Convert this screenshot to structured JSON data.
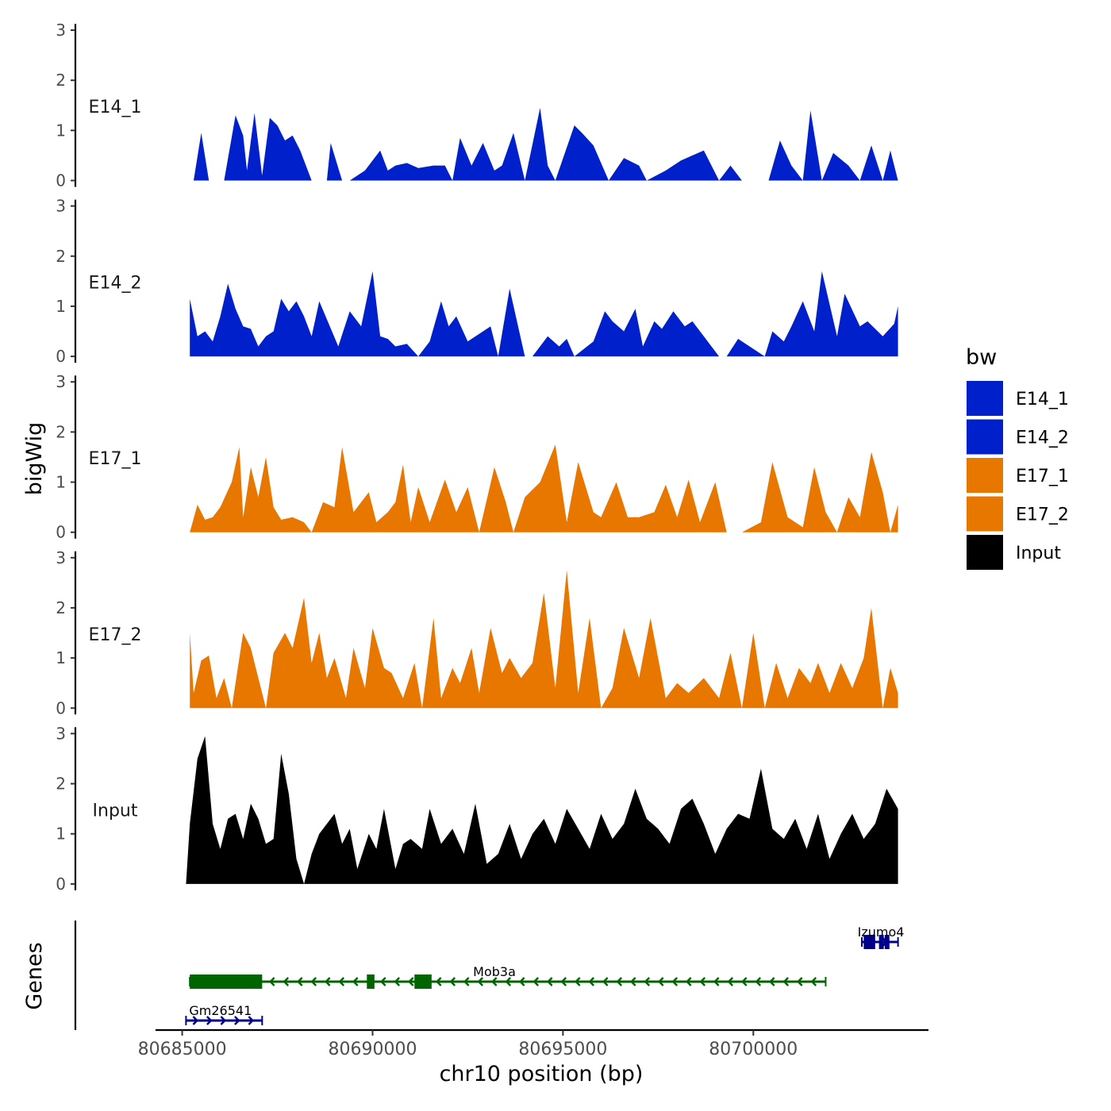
{
  "chart_data": {
    "type": "area",
    "xlabel": "chr10 position (bp)",
    "ylabel": "bigWig",
    "genes_label": "Genes",
    "xlim": [
      80684300,
      80704600
    ],
    "x_ticks": [
      80685000,
      80690000,
      80695000,
      80700000
    ],
    "x_tick_labels": [
      "80685000",
      "80690000",
      "80695000",
      "80700000"
    ],
    "ylim": [
      0,
      3
    ],
    "y_ticks": [
      0,
      1,
      2,
      3
    ],
    "y_tick_labels": [
      "0",
      "1",
      "2",
      "3"
    ],
    "legend": {
      "title": "bw",
      "entries": [
        "E14_1",
        "E14_2",
        "E17_1",
        "E17_2",
        "Input"
      ]
    },
    "series": [
      {
        "name": "E14_1",
        "color": "#0020CC",
        "x": [
          80685300,
          80685500,
          80685700,
          80686100,
          80686400,
          80686600,
          80686700,
          80686900,
          80687100,
          80687300,
          80687500,
          80687700,
          80687900,
          80688100,
          80688400,
          80688800,
          80688900,
          80689200,
          80689400,
          80689800,
          80690200,
          80690400,
          80690600,
          80690900,
          80691200,
          80691600,
          80691900,
          80692100,
          80692300,
          80692600,
          80692900,
          80693200,
          80693400,
          80693700,
          80694000,
          80694400,
          80694600,
          80694800,
          80695300,
          80695500,
          80695800,
          80696200,
          80696600,
          80697000,
          80697200,
          80697700,
          80698100,
          80698400,
          80698700,
          80699100,
          80699400,
          80699700,
          80700400,
          80700700,
          80701000,
          80701300,
          80701500,
          80701800,
          80702100,
          80702500,
          80702800,
          80703100,
          80703400,
          80703600,
          80703800
        ],
        "values": [
          0.0,
          0.95,
          0.0,
          0.0,
          1.3,
          0.9,
          0.2,
          1.35,
          0.1,
          1.25,
          1.1,
          0.8,
          0.9,
          0.6,
          0.0,
          0.0,
          0.75,
          0.0,
          0.0,
          0.2,
          0.6,
          0.2,
          0.3,
          0.35,
          0.25,
          0.3,
          0.3,
          0.0,
          0.85,
          0.3,
          0.75,
          0.2,
          0.3,
          0.95,
          0.0,
          1.45,
          0.3,
          0.0,
          1.1,
          0.95,
          0.7,
          0.0,
          0.45,
          0.3,
          0.0,
          0.2,
          0.4,
          0.5,
          0.6,
          0.0,
          0.3,
          0.0,
          0.0,
          0.8,
          0.3,
          0.0,
          1.4,
          0.0,
          0.55,
          0.3,
          0.0,
          0.7,
          0.0,
          0.6,
          0.0
        ]
      },
      {
        "name": "E14_2",
        "color": "#0020CC",
        "x": [
          80685200,
          80685400,
          80685600,
          80685800,
          80686000,
          80686200,
          80686400,
          80686600,
          80686800,
          80687000,
          80687200,
          80687400,
          80687600,
          80687800,
          80688000,
          80688200,
          80688400,
          80688600,
          80689100,
          80689400,
          80689700,
          80690000,
          80690200,
          80690400,
          80690600,
          80690900,
          80691200,
          80691500,
          80691800,
          80692000,
          80692200,
          80692500,
          80693100,
          80693300,
          80693600,
          80694000,
          80694200,
          80694600,
          80694900,
          80695100,
          80695300,
          80695800,
          80696100,
          80696300,
          80696600,
          80696900,
          80697100,
          80697400,
          80697600,
          80697900,
          80698200,
          80698400,
          80699100,
          80699300,
          80699600,
          80700300,
          80700500,
          80700800,
          80701000,
          80701300,
          80701600,
          80701800,
          80702200,
          80702400,
          80702800,
          80703000,
          80703400,
          80703700,
          80703800
        ],
        "values": [
          1.15,
          0.4,
          0.5,
          0.3,
          0.8,
          1.45,
          0.95,
          0.6,
          0.55,
          0.2,
          0.4,
          0.5,
          1.15,
          0.9,
          1.1,
          0.8,
          0.4,
          1.1,
          0.2,
          0.9,
          0.6,
          1.7,
          0.4,
          0.35,
          0.2,
          0.25,
          0.0,
          0.3,
          1.1,
          0.6,
          0.8,
          0.3,
          0.6,
          0.0,
          1.35,
          0.0,
          0.0,
          0.4,
          0.2,
          0.35,
          0.0,
          0.3,
          0.9,
          0.7,
          0.5,
          0.95,
          0.2,
          0.7,
          0.55,
          0.9,
          0.6,
          0.7,
          0.0,
          0.0,
          0.35,
          0.0,
          0.5,
          0.3,
          0.6,
          1.1,
          0.5,
          1.7,
          0.4,
          1.25,
          0.6,
          0.7,
          0.4,
          0.65,
          1.0
        ]
      },
      {
        "name": "E17_1",
        "color": "#E87700",
        "x": [
          80685200,
          80685400,
          80685600,
          80685800,
          80686000,
          80686300,
          80686500,
          80686600,
          80686800,
          80687000,
          80687200,
          80687400,
          80687600,
          80687900,
          80688200,
          80688400,
          80688700,
          80689000,
          80689200,
          80689500,
          80689900,
          80690100,
          80690400,
          80690600,
          80690800,
          80691000,
          80691200,
          80691500,
          80691900,
          80692200,
          80692500,
          80692800,
          80693200,
          80693500,
          80693700,
          80694000,
          80694400,
          80694800,
          80695100,
          80695400,
          80695800,
          80696000,
          80696400,
          80696700,
          80697000,
          80697400,
          80697700,
          80698000,
          80698300,
          80698600,
          80699000,
          80699300,
          80699700,
          80700200,
          80700500,
          80700900,
          80701300,
          80701600,
          80701900,
          80702200,
          80702500,
          80702800,
          80703100,
          80703400,
          80703600,
          80703800
        ],
        "values": [
          0.0,
          0.55,
          0.25,
          0.3,
          0.5,
          1.0,
          1.7,
          0.3,
          1.3,
          0.7,
          1.5,
          0.5,
          0.25,
          0.3,
          0.2,
          0.0,
          0.6,
          0.5,
          1.7,
          0.4,
          0.8,
          0.2,
          0.4,
          0.6,
          1.35,
          0.2,
          0.9,
          0.2,
          1.05,
          0.4,
          0.9,
          0.0,
          1.3,
          0.6,
          0.0,
          0.7,
          1.0,
          1.75,
          0.2,
          1.4,
          0.4,
          0.3,
          1.0,
          0.3,
          0.3,
          0.4,
          0.95,
          0.3,
          1.05,
          0.2,
          1.0,
          0.0,
          0.0,
          0.2,
          1.4,
          0.3,
          0.1,
          1.3,
          0.4,
          0.0,
          0.7,
          0.3,
          1.6,
          0.8,
          0.0,
          0.55
        ]
      },
      {
        "name": "E17_2",
        "color": "#E87700",
        "x": [
          80685200,
          80685300,
          80685500,
          80685700,
          80685900,
          80686100,
          80686300,
          80686600,
          80686800,
          80687000,
          80687200,
          80687400,
          80687700,
          80687900,
          80688200,
          80688400,
          80688600,
          80688800,
          80689000,
          80689300,
          80689500,
          80689800,
          80690000,
          80690300,
          80690500,
          80690800,
          80691100,
          80691300,
          80691600,
          80691800,
          80692100,
          80692300,
          80692600,
          80692800,
          80693100,
          80693400,
          80693600,
          80693900,
          80694200,
          80694500,
          80694800,
          80695100,
          80695400,
          80695700,
          80696000,
          80696300,
          80696600,
          80697000,
          80697300,
          80697700,
          80698000,
          80698300,
          80698700,
          80699100,
          80699400,
          80699700,
          80700000,
          80700300,
          80700600,
          80700900,
          80701200,
          80701500,
          80701700,
          80702000,
          80702300,
          80702600,
          80702900,
          80703100,
          80703400,
          80703600,
          80703800
        ],
        "values": [
          1.5,
          0.3,
          0.95,
          1.05,
          0.2,
          0.6,
          0.0,
          1.5,
          1.2,
          0.6,
          0.0,
          1.1,
          1.5,
          1.2,
          2.2,
          0.9,
          1.5,
          0.6,
          1.0,
          0.2,
          1.2,
          0.4,
          1.6,
          0.8,
          0.7,
          0.2,
          0.9,
          0.0,
          1.8,
          0.2,
          0.8,
          0.5,
          1.2,
          0.3,
          1.6,
          0.7,
          1.0,
          0.6,
          0.9,
          2.3,
          0.4,
          2.75,
          0.3,
          1.8,
          0.0,
          0.4,
          1.6,
          0.6,
          1.8,
          0.2,
          0.5,
          0.3,
          0.6,
          0.2,
          1.1,
          0.0,
          1.5,
          0.0,
          0.9,
          0.2,
          0.8,
          0.5,
          0.9,
          0.3,
          0.9,
          0.4,
          1.0,
          2.0,
          0.0,
          0.8,
          0.3
        ]
      },
      {
        "name": "Input",
        "color": "#000000",
        "x": [
          80685100,
          80685200,
          80685400,
          80685600,
          80685800,
          80686000,
          80686200,
          80686400,
          80686600,
          80686800,
          80687000,
          80687200,
          80687400,
          80687600,
          80687800,
          80688000,
          80688200,
          80688400,
          80688600,
          80688800,
          80689000,
          80689200,
          80689400,
          80689600,
          80689900,
          80690100,
          80690300,
          80690600,
          80690800,
          80691000,
          80691300,
          80691500,
          80691800,
          80692100,
          80692400,
          80692700,
          80693000,
          80693300,
          80693600,
          80693900,
          80694200,
          80694500,
          80694800,
          80695100,
          80695400,
          80695700,
          80696000,
          80696300,
          80696600,
          80696900,
          80697200,
          80697500,
          80697800,
          80698100,
          80698400,
          80698700,
          80699000,
          80699300,
          80699600,
          80699900,
          80700200,
          80700500,
          80700800,
          80701100,
          80701400,
          80701700,
          80702000,
          80702300,
          80702600,
          80702900,
          80703200,
          80703500,
          80703800
        ],
        "values": [
          0.0,
          1.2,
          2.5,
          2.95,
          1.2,
          0.7,
          1.3,
          1.4,
          0.9,
          1.6,
          1.3,
          0.8,
          0.9,
          2.6,
          1.8,
          0.5,
          0.0,
          0.6,
          1.0,
          1.2,
          1.4,
          0.8,
          1.1,
          0.3,
          1.0,
          0.7,
          1.5,
          0.3,
          0.8,
          0.9,
          0.7,
          1.5,
          0.8,
          1.1,
          0.6,
          1.6,
          0.4,
          0.6,
          1.2,
          0.5,
          1.0,
          1.3,
          0.8,
          1.5,
          1.1,
          0.7,
          1.4,
          0.9,
          1.2,
          1.9,
          1.3,
          1.1,
          0.8,
          1.5,
          1.7,
          1.2,
          0.6,
          1.1,
          1.4,
          1.3,
          2.3,
          1.1,
          0.9,
          1.3,
          0.7,
          1.4,
          0.5,
          1.0,
          1.4,
          0.9,
          1.2,
          1.9,
          1.5
        ]
      }
    ],
    "genes": [
      {
        "name": "Izumo4",
        "color": "#00008B",
        "strand": "+",
        "row": 0,
        "start": 80702850,
        "end": 80703800,
        "exons": [
          [
            80702900,
            80703200
          ],
          [
            80703300,
            80703400
          ],
          [
            80703450,
            80703500
          ]
        ]
      },
      {
        "name": "Mob3a",
        "color": "#006400",
        "strand": "-",
        "row": 1,
        "start": 80685200,
        "end": 80701900,
        "exons": [
          [
            80685200,
            80687100
          ],
          [
            80689850,
            80690050
          ],
          [
            80691100,
            80691550
          ]
        ]
      },
      {
        "name": "Gm26541",
        "color": "#00008B",
        "strand": "+",
        "row": 2,
        "start": 80685100,
        "end": 80687100,
        "exons": []
      }
    ]
  }
}
